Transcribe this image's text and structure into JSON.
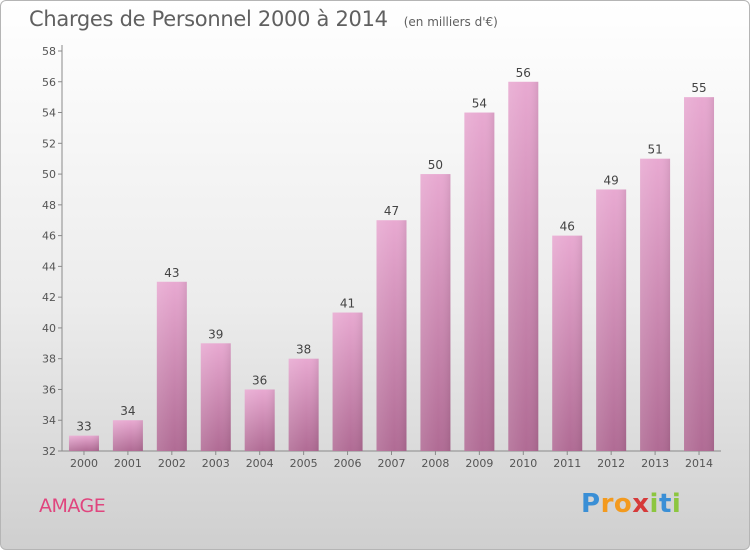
{
  "chart_data": {
    "type": "bar",
    "title": "Charges de Personnel 2000 à 2014",
    "subtitle": "(en milliers d'€)",
    "categories": [
      "2000",
      "2001",
      "2002",
      "2003",
      "2004",
      "2005",
      "2006",
      "2007",
      "2008",
      "2009",
      "2010",
      "2011",
      "2012",
      "2013",
      "2014"
    ],
    "values": [
      33,
      34,
      43,
      39,
      36,
      38,
      41,
      47,
      50,
      54,
      56,
      46,
      49,
      51,
      55
    ],
    "ylim": [
      32,
      58
    ],
    "yticks": [
      32,
      34,
      36,
      38,
      40,
      42,
      44,
      46,
      48,
      50,
      52,
      54,
      56,
      58
    ],
    "xlabel": "",
    "ylabel": "",
    "grid": false,
    "bar_color_top": "#e8a9d1",
    "bar_color_bottom": "#b06b94"
  },
  "commune": "AMAGE",
  "logo": {
    "letters": [
      "P",
      "r",
      "o",
      "x",
      "i",
      "t",
      "i"
    ],
    "colors": [
      "#3a8fd6",
      "#f39a1e",
      "#f39a1e",
      "#d63a3a",
      "#8cc63f",
      "#3a8fd6",
      "#8cc63f"
    ]
  }
}
